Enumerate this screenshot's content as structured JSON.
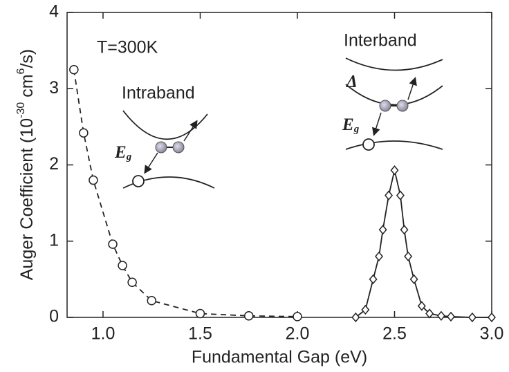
{
  "chart_data": {
    "type": "line",
    "xlabel": "Fundamental Gap (eV)",
    "ylabel": {
      "text": "Auger Coefficient (10",
      "exponent1": "-30",
      "middle": " cm",
      "exponent2": "6",
      "end": "/s)"
    },
    "xlim": [
      0.815,
      3.0
    ],
    "ylim": [
      0,
      4
    ],
    "xticks": [
      {
        "value": 1,
        "label": "1.0"
      },
      1.5,
      {
        "value": 2,
        "label": "2.0"
      },
      2.5,
      {
        "value": 3,
        "label": "3.0"
      }
    ],
    "yticks": [
      0,
      1,
      2,
      3,
      4
    ],
    "annotations": [
      "T=300K",
      "Intraband",
      "Interband",
      "Δ"
    ],
    "energy_gap_labels": [
      {
        "symbol": "E",
        "subscript": "g"
      },
      {
        "symbol": "E",
        "subscript": "g"
      }
    ],
    "series": [
      {
        "marker": "circle",
        "dashed": true,
        "color": "#222222",
        "x": [
          0.85,
          0.9,
          0.95,
          1.05,
          1.1,
          1.15,
          1.25,
          1.5,
          1.75,
          2.0
        ],
        "values": [
          3.25,
          2.42,
          1.8,
          0.96,
          0.68,
          0.46,
          0.22,
          0.05,
          0.02,
          0.01
        ]
      },
      {
        "marker": "diamond",
        "dashed": false,
        "color": "#222222",
        "x": [
          2.3,
          2.35,
          2.39,
          2.42,
          2.44,
          2.47,
          2.5,
          2.53,
          2.55,
          2.57,
          2.6,
          2.64,
          2.68,
          2.74,
          2.79,
          2.9,
          3.0
        ],
        "values": [
          0,
          0.1,
          0.5,
          0.8,
          1.15,
          1.6,
          1.93,
          1.6,
          1.15,
          0.8,
          0.5,
          0.15,
          0.05,
          0.02,
          0.01,
          0,
          0
        ]
      }
    ]
  }
}
